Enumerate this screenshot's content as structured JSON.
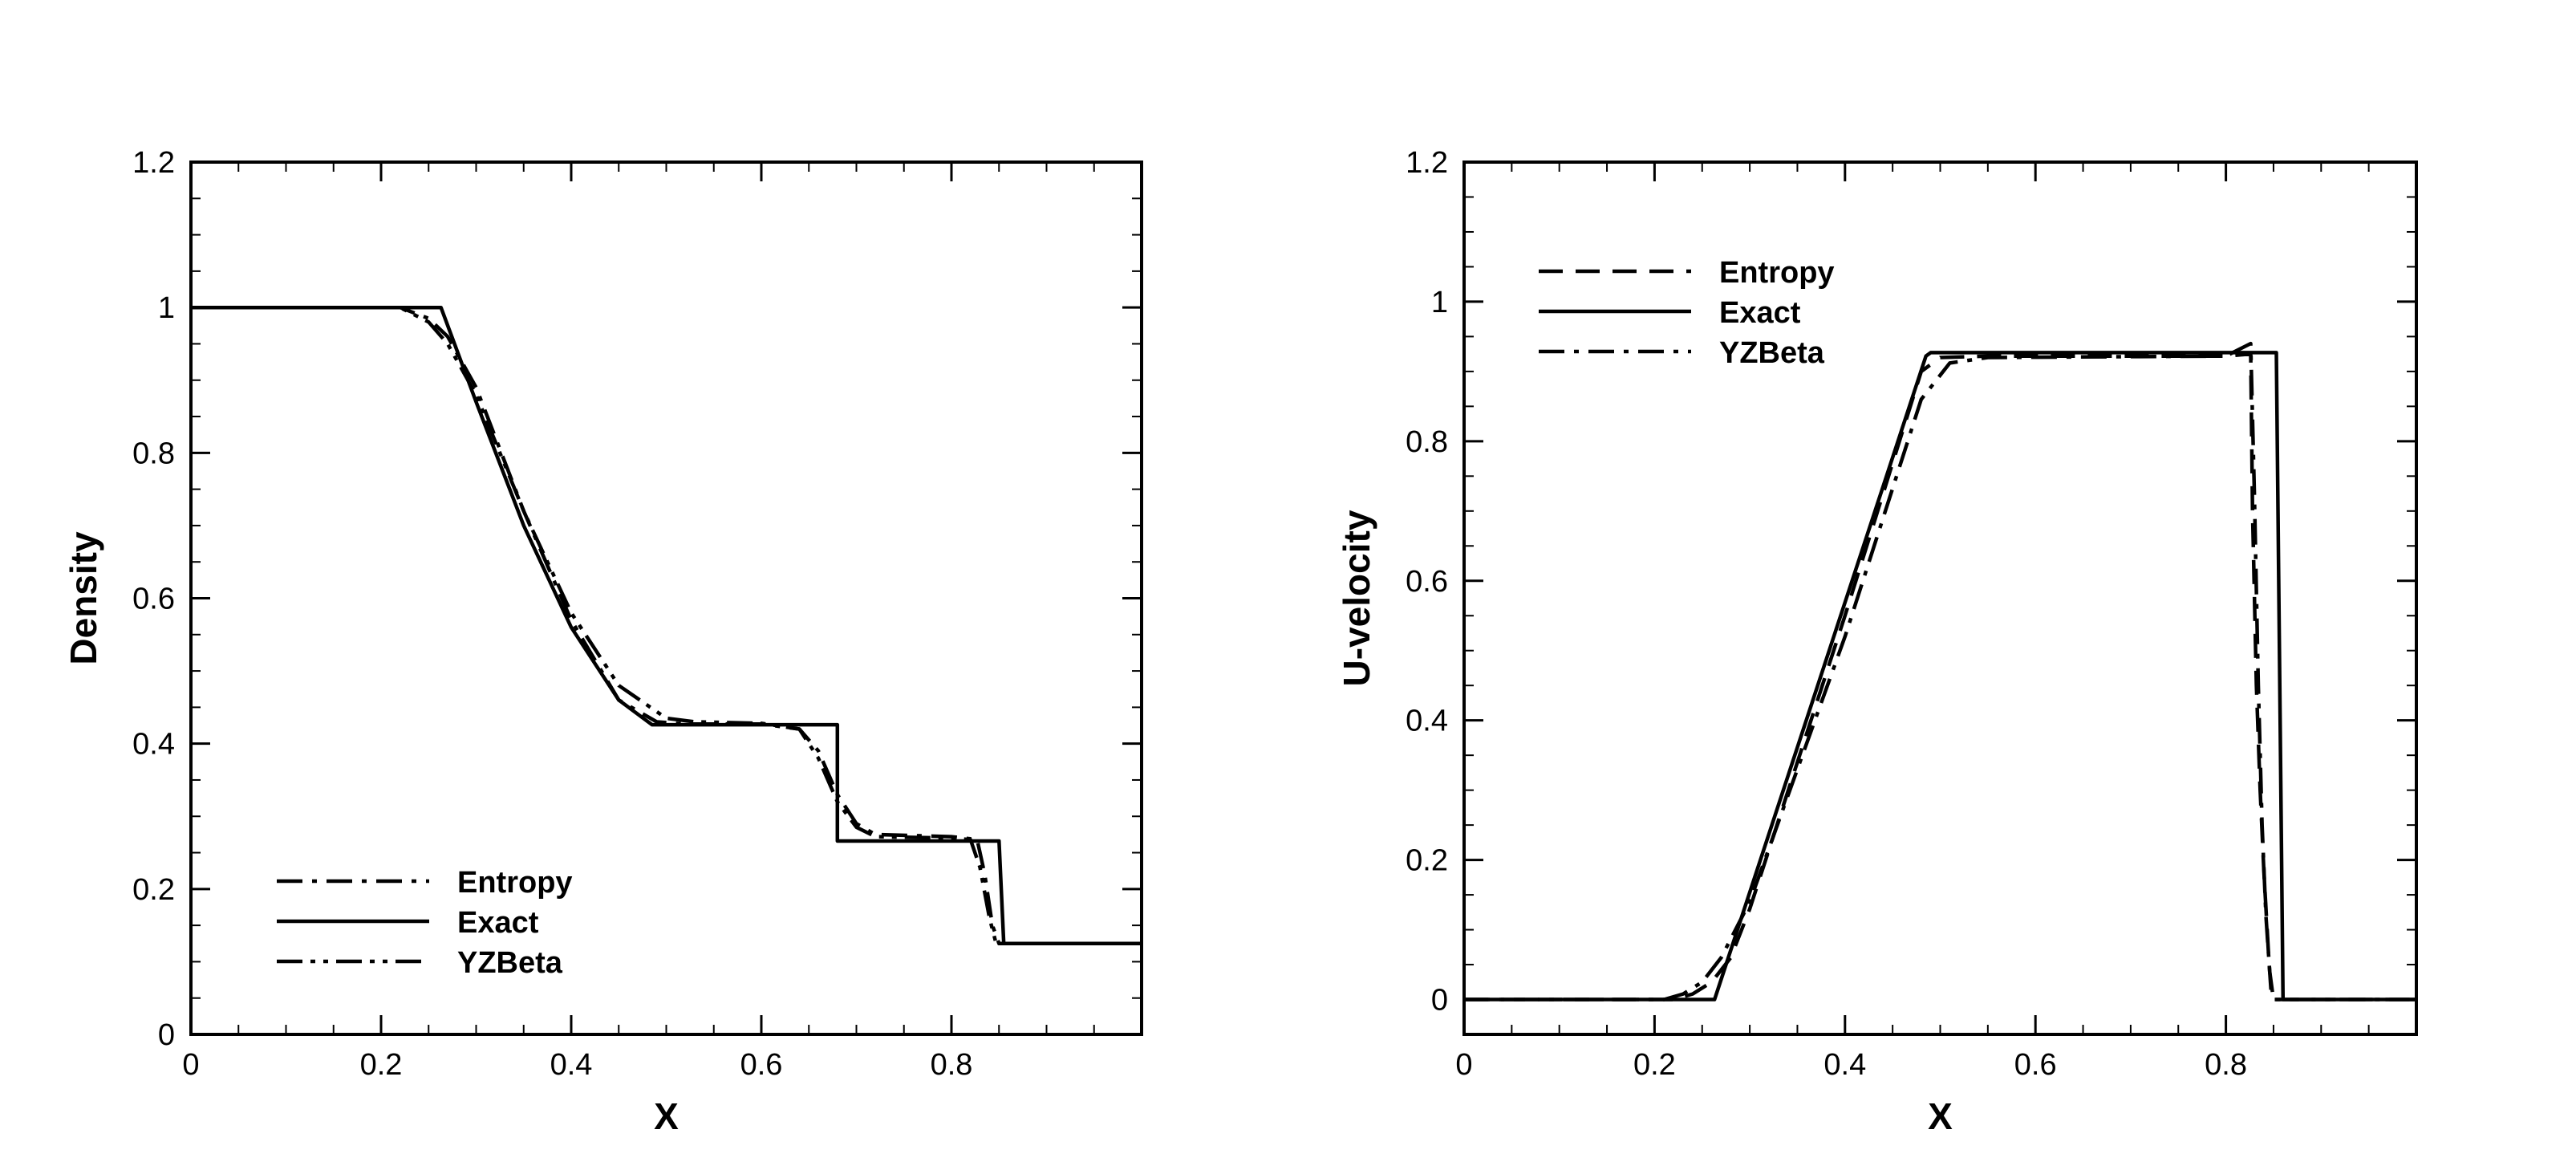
{
  "chart_data": [
    {
      "type": "line",
      "title": "",
      "xlabel": "X",
      "ylabel": "Density",
      "xlim": [
        0,
        1
      ],
      "ylim": [
        0,
        1.2
      ],
      "xticks": [
        "0",
        "0.2",
        "0.4",
        "0.6",
        "0.8"
      ],
      "yticks": [
        "0",
        "0.2",
        "0.4",
        "0.6",
        "0.8",
        "1",
        "1.2"
      ],
      "legend_position": "bottom-left",
      "series": [
        {
          "name": "Entropy",
          "style": "dashdot",
          "x": [
            0,
            0.22,
            0.25,
            0.27,
            0.3,
            0.35,
            0.4,
            0.45,
            0.49,
            0.52,
            0.6,
            0.64,
            0.66,
            0.68,
            0.7,
            0.72,
            0.8,
            0.827,
            0.835,
            0.843,
            0.85,
            1.0
          ],
          "y": [
            1,
            1,
            0.985,
            0.96,
            0.89,
            0.72,
            0.57,
            0.46,
            0.43,
            0.427,
            0.427,
            0.42,
            0.39,
            0.33,
            0.29,
            0.275,
            0.272,
            0.268,
            0.22,
            0.15,
            0.125,
            0.125
          ]
        },
        {
          "name": "Exact",
          "style": "solid",
          "x": [
            0,
            0.263,
            0.3,
            0.35,
            0.4,
            0.45,
            0.485,
            0.68,
            0.68,
            0.85,
            0.855,
            1.0
          ],
          "y": [
            1,
            1,
            0.87,
            0.7,
            0.56,
            0.46,
            0.426,
            0.426,
            0.266,
            0.266,
            0.125,
            0.125
          ]
        },
        {
          "name": "YZBeta",
          "style": "dashdotdot",
          "x": [
            0,
            0.22,
            0.25,
            0.27,
            0.3,
            0.35,
            0.4,
            0.45,
            0.5,
            0.53,
            0.6,
            0.64,
            0.66,
            0.68,
            0.7,
            0.72,
            0.8,
            0.82,
            0.83,
            0.84,
            0.847,
            1.0
          ],
          "y": [
            1,
            1,
            0.98,
            0.95,
            0.88,
            0.72,
            0.58,
            0.48,
            0.435,
            0.43,
            0.428,
            0.42,
            0.38,
            0.32,
            0.285,
            0.272,
            0.27,
            0.268,
            0.23,
            0.16,
            0.125,
            0.125
          ]
        }
      ]
    },
    {
      "type": "line",
      "title": "",
      "xlabel": "X",
      "ylabel": "U-velocity",
      "xlim": [
        0,
        1
      ],
      "ylim": [
        -0.05,
        1.2
      ],
      "xticks": [
        "0",
        "0.2",
        "0.4",
        "0.6",
        "0.8"
      ],
      "yticks": [
        "0",
        "0.2",
        "0.4",
        "0.6",
        "0.8",
        "1",
        "1.2"
      ],
      "legend_position": "top-left",
      "series": [
        {
          "name": "Entropy",
          "style": "dashed",
          "x": [
            0,
            0.22,
            0.24,
            0.26,
            0.28,
            0.3,
            0.4,
            0.48,
            0.5,
            0.55,
            0.8,
            0.826,
            0.828,
            0.832,
            0.836,
            0.84,
            0.845,
            0.848,
            1.0
          ],
          "y": [
            0,
            0,
            0.008,
            0.025,
            0.06,
            0.13,
            0.55,
            0.9,
            0.92,
            0.922,
            0.922,
            0.925,
            0.7,
            0.45,
            0.3,
            0.18,
            0.06,
            0,
            0
          ]
        },
        {
          "name": "Exact",
          "style": "solid",
          "x": [
            0,
            0.263,
            0.485,
            0.49,
            0.853,
            0.86,
            1.0
          ],
          "y": [
            0,
            0,
            0.922,
            0.927,
            0.927,
            0,
            0
          ]
        },
        {
          "name": "YZBeta",
          "style": "dashdot",
          "x": [
            0,
            0.21,
            0.23,
            0.25,
            0.27,
            0.3,
            0.4,
            0.48,
            0.51,
            0.55,
            0.8,
            0.826,
            0.83,
            0.834,
            0.838,
            0.842,
            0.846,
            0.85,
            1.0
          ],
          "y": [
            0,
            0,
            0.008,
            0.025,
            0.06,
            0.14,
            0.52,
            0.86,
            0.912,
            0.92,
            0.922,
            0.94,
            0.72,
            0.45,
            0.25,
            0.12,
            0.04,
            0,
            0
          ]
        }
      ]
    }
  ]
}
